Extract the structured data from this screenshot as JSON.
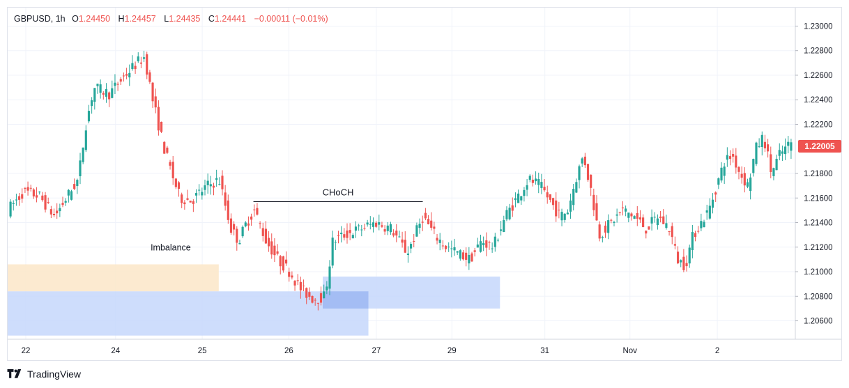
{
  "legend": {
    "symbol": "GBPUSD, 1h",
    "open_label": "O",
    "open": "1.24450",
    "high_label": "H",
    "high": "1.24457",
    "low_label": "L",
    "low": "1.24435",
    "close_label": "C",
    "close": "1.24441",
    "change": "−0.00011 (−0.01%)"
  },
  "current_price": "1.22005",
  "brand": {
    "name": "TradingView",
    "logo_icon": "tradingview-logo-icon"
  },
  "colors": {
    "up": "#26a69a",
    "down": "#ef5350",
    "imbalance": "#fce6c8",
    "block": "#c6d7fb",
    "block_dark": "#9db8f2",
    "grid": "#f0f3fa"
  },
  "chart_data": {
    "type": "candlestick",
    "title": "GBPUSD, 1h",
    "ylim": [
      1.2045,
      1.2315
    ],
    "y_ticks": [
      "1.23000",
      "1.22800",
      "1.22600",
      "1.22400",
      "1.22200",
      "1.21800",
      "1.21600",
      "1.21400",
      "1.21200",
      "1.21000",
      "1.20800",
      "1.20600"
    ],
    "x_ticks": [
      {
        "label": "22",
        "pos": 0.023
      },
      {
        "label": "24",
        "pos": 0.137
      },
      {
        "label": "25",
        "pos": 0.247
      },
      {
        "label": "26",
        "pos": 0.357
      },
      {
        "label": "27",
        "pos": 0.468
      },
      {
        "label": "29",
        "pos": 0.564
      },
      {
        "label": "31",
        "pos": 0.682
      },
      {
        "label": "Nov",
        "pos": 0.79
      },
      {
        "label": "2",
        "pos": 0.901
      }
    ],
    "annotations": [
      {
        "text": "CHoCH",
        "type": "line",
        "price": 1.2157,
        "x_from": 0.312,
        "x_to": 0.527
      },
      {
        "text": "Imbalance",
        "type": "label",
        "price": 1.2114,
        "x": 0.207
      }
    ],
    "zones": [
      {
        "name": "imbalance-zone",
        "x_from": 0.0,
        "x_to": 0.268,
        "y_from": 1.2106,
        "y_to": 1.2084,
        "color": "#fce6c8"
      },
      {
        "name": "demand-block-large",
        "x_from": 0.0,
        "x_to": 0.458,
        "y_from": 1.2084,
        "y_to": 1.2048,
        "color": "#c6d7fb"
      },
      {
        "name": "demand-block-right",
        "x_from": 0.4,
        "x_to": 0.625,
        "y_from": 1.2096,
        "y_to": 1.207,
        "color": "#c6d7fb"
      },
      {
        "name": "demand-block-overlap",
        "x_from": 0.4,
        "x_to": 0.458,
        "y_from": 1.2084,
        "y_to": 1.207,
        "color": "#9db8f2"
      }
    ],
    "path": [
      [
        0,
        1.215
      ],
      [
        0.02,
        1.2165
      ],
      [
        0.04,
        1.2162
      ],
      [
        0.06,
        1.2145
      ],
      [
        0.075,
        1.216
      ],
      [
        0.09,
        1.2175
      ],
      [
        0.1,
        1.222
      ],
      [
        0.11,
        1.225
      ],
      [
        0.13,
        1.2245
      ],
      [
        0.15,
        1.226
      ],
      [
        0.165,
        1.227
      ],
      [
        0.175,
        1.2275
      ],
      [
        0.185,
        1.224
      ],
      [
        0.2,
        1.22
      ],
      [
        0.212,
        1.2175
      ],
      [
        0.22,
        1.216
      ],
      [
        0.235,
        1.2158
      ],
      [
        0.255,
        1.217
      ],
      [
        0.27,
        1.2175
      ],
      [
        0.285,
        1.2135
      ],
      [
        0.295,
        1.2125
      ],
      [
        0.305,
        1.214
      ],
      [
        0.315,
        1.215
      ],
      [
        0.33,
        1.2125
      ],
      [
        0.345,
        1.211
      ],
      [
        0.36,
        1.21
      ],
      [
        0.375,
        1.2085
      ],
      [
        0.39,
        1.2078
      ],
      [
        0.405,
        1.208
      ],
      [
        0.415,
        1.2125
      ],
      [
        0.43,
        1.213
      ],
      [
        0.45,
        1.2135
      ],
      [
        0.47,
        1.214
      ],
      [
        0.49,
        1.2135
      ],
      [
        0.51,
        1.2115
      ],
      [
        0.53,
        1.2145
      ],
      [
        0.545,
        1.213
      ],
      [
        0.56,
        1.212
      ],
      [
        0.575,
        1.2115
      ],
      [
        0.59,
        1.211
      ],
      [
        0.605,
        1.2125
      ],
      [
        0.62,
        1.212
      ],
      [
        0.635,
        1.2145
      ],
      [
        0.65,
        1.216
      ],
      [
        0.665,
        1.2175
      ],
      [
        0.68,
        1.217
      ],
      [
        0.695,
        1.2155
      ],
      [
        0.705,
        1.2145
      ],
      [
        0.715,
        1.215
      ],
      [
        0.725,
        1.2175
      ],
      [
        0.735,
        1.2195
      ],
      [
        0.745,
        1.2165
      ],
      [
        0.755,
        1.213
      ],
      [
        0.77,
        1.214
      ],
      [
        0.785,
        1.215
      ],
      [
        0.8,
        1.2145
      ],
      [
        0.815,
        1.2135
      ],
      [
        0.83,
        1.2145
      ],
      [
        0.845,
        1.2135
      ],
      [
        0.855,
        1.211
      ],
      [
        0.865,
        1.2105
      ],
      [
        0.875,
        1.213
      ],
      [
        0.885,
        1.214
      ],
      [
        0.895,
        1.215
      ],
      [
        0.905,
        1.217
      ],
      [
        0.915,
        1.219
      ],
      [
        0.925,
        1.2195
      ],
      [
        0.935,
        1.218
      ],
      [
        0.945,
        1.217
      ],
      [
        0.955,
        1.22
      ],
      [
        0.965,
        1.221
      ],
      [
        0.975,
        1.218
      ],
      [
        0.985,
        1.2195
      ],
      [
        1.0,
        1.2205
      ]
    ]
  }
}
